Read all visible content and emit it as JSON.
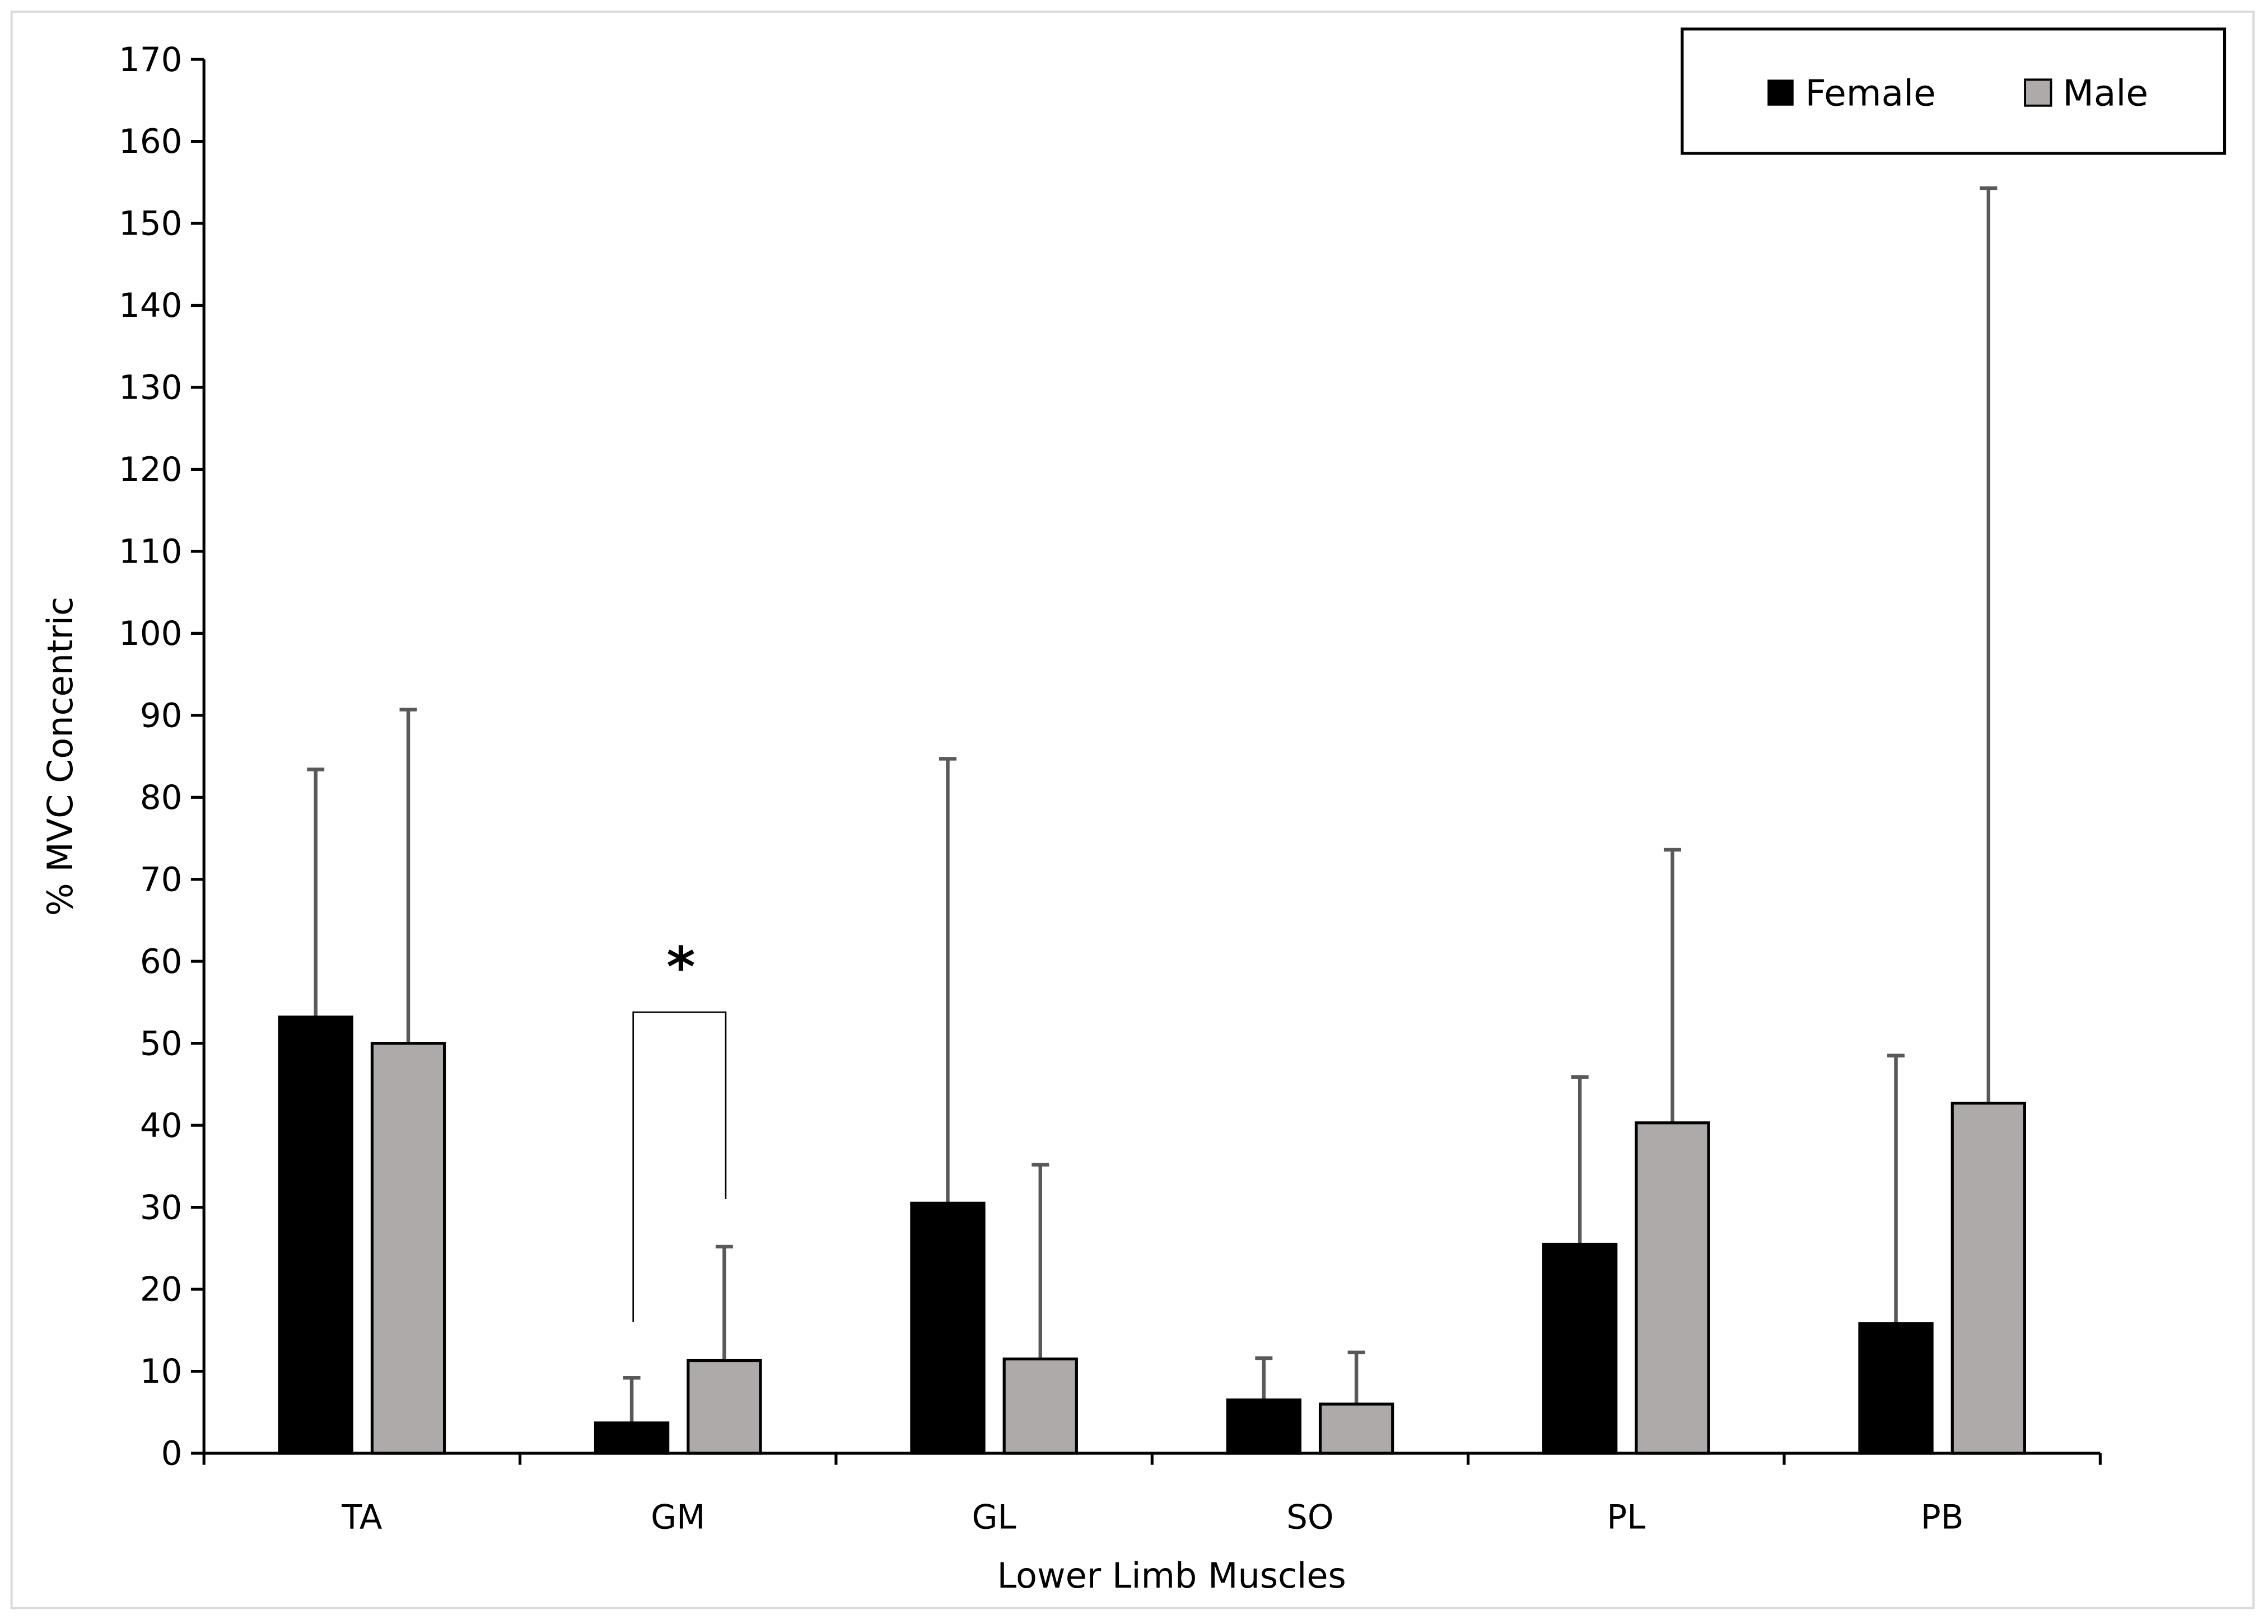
{
  "chart_data": {
    "type": "bar",
    "title": "",
    "xlabel": "Lower Limb Muscles",
    "ylabel": "% MVC Concentric",
    "ylim": [
      0,
      170
    ],
    "yticks": [
      0,
      10,
      20,
      30,
      40,
      50,
      60,
      70,
      80,
      90,
      100,
      110,
      120,
      130,
      140,
      150,
      160,
      170
    ],
    "categories": [
      "TA",
      "GM",
      "GL",
      "SO",
      "PL",
      "PB"
    ],
    "series": [
      {
        "name": "Female",
        "color": "#000000",
        "values": [
          53.2,
          3.7,
          30.5,
          6.5,
          25.5,
          15.8
        ],
        "error_upper": [
          83.4,
          9.2,
          84.7,
          11.6,
          45.9,
          48.5
        ]
      },
      {
        "name": "Male",
        "color": "#aeaaaa",
        "values": [
          50.0,
          11.3,
          11.5,
          6.0,
          40.3,
          42.7
        ],
        "error_upper": [
          90.7,
          25.2,
          35.2,
          12.3,
          73.6,
          154.3
        ]
      }
    ],
    "annotations": [
      {
        "category": "GM",
        "text": "*",
        "bracket_top": 53.8,
        "bracket_left_end": 16,
        "bracket_right_end": 31
      }
    ],
    "legend": {
      "placement": "top-right"
    },
    "grid": false
  }
}
